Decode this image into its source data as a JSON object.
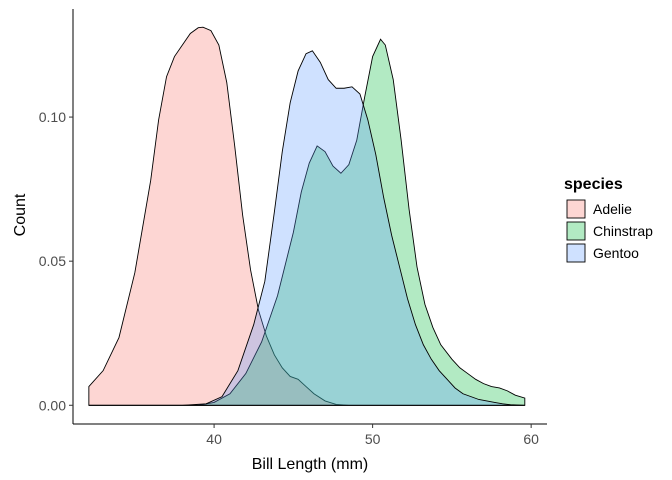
{
  "chart_data": {
    "type": "area",
    "xlabel": "Bill Length (mm)",
    "ylabel": "Count",
    "xlim": [
      31.1,
      61.0
    ],
    "ylim": [
      -0.0065,
      0.1375
    ],
    "x_ticks": [
      40,
      50,
      60
    ],
    "x_tick_labels": [
      "40",
      "50",
      "60"
    ],
    "y_ticks": [
      0.0,
      0.05,
      0.1
    ],
    "y_tick_labels": [
      "0.00",
      "0.05",
      "0.10"
    ],
    "grid": false,
    "legend": {
      "title": "species",
      "position": "right"
    },
    "series": [
      {
        "name": "Adelie",
        "color": "#F8766D",
        "points": [
          [
            32.1,
            0.0065
          ],
          [
            33.0,
            0.012
          ],
          [
            34.0,
            0.0235
          ],
          [
            35.0,
            0.046
          ],
          [
            36.0,
            0.078
          ],
          [
            36.5,
            0.099
          ],
          [
            37.0,
            0.114
          ],
          [
            37.5,
            0.121
          ],
          [
            38.0,
            0.125
          ],
          [
            38.5,
            0.129
          ],
          [
            39.0,
            0.131
          ],
          [
            39.3,
            0.1312
          ],
          [
            39.8,
            0.13
          ],
          [
            40.3,
            0.125
          ],
          [
            40.8,
            0.112
          ],
          [
            41.3,
            0.09
          ],
          [
            41.8,
            0.066
          ],
          [
            42.3,
            0.047
          ],
          [
            42.8,
            0.033
          ],
          [
            43.3,
            0.024
          ],
          [
            43.8,
            0.0175
          ],
          [
            44.3,
            0.013
          ],
          [
            44.8,
            0.01
          ],
          [
            45.3,
            0.009
          ],
          [
            45.8,
            0.0065
          ],
          [
            46.3,
            0.004
          ],
          [
            47.0,
            0.0015
          ],
          [
            47.7,
            0.0003
          ],
          [
            48.5,
            0.0
          ],
          [
            59.6,
            0.0
          ]
        ]
      },
      {
        "name": "Chinstrap",
        "color": "#00BA38",
        "points": [
          [
            32.1,
            0.0
          ],
          [
            39.0,
            0.0
          ],
          [
            40.0,
            0.001
          ],
          [
            41.0,
            0.004
          ],
          [
            42.0,
            0.011
          ],
          [
            43.0,
            0.022
          ],
          [
            44.0,
            0.038
          ],
          [
            45.0,
            0.06
          ],
          [
            45.5,
            0.074
          ],
          [
            46.0,
            0.084
          ],
          [
            46.5,
            0.09
          ],
          [
            47.0,
            0.088
          ],
          [
            47.5,
            0.083
          ],
          [
            48.0,
            0.0805
          ],
          [
            48.5,
            0.0835
          ],
          [
            49.0,
            0.092
          ],
          [
            49.5,
            0.107
          ],
          [
            50.0,
            0.121
          ],
          [
            50.5,
            0.127
          ],
          [
            50.8,
            0.125
          ],
          [
            51.3,
            0.113
          ],
          [
            51.8,
            0.092
          ],
          [
            52.3,
            0.068
          ],
          [
            52.8,
            0.048
          ],
          [
            53.3,
            0.035
          ],
          [
            53.8,
            0.027
          ],
          [
            54.3,
            0.021
          ],
          [
            55.0,
            0.016
          ],
          [
            55.5,
            0.013
          ],
          [
            56.0,
            0.011
          ],
          [
            56.5,
            0.009
          ],
          [
            57.0,
            0.0075
          ],
          [
            57.5,
            0.0065
          ],
          [
            58.0,
            0.006
          ],
          [
            58.5,
            0.005
          ],
          [
            59.0,
            0.0035
          ],
          [
            59.6,
            0.0025
          ]
        ]
      },
      {
        "name": "Gentoo",
        "color": "#619CFF",
        "points": [
          [
            32.1,
            0.0
          ],
          [
            38.0,
            0.0
          ],
          [
            39.5,
            0.0005
          ],
          [
            40.5,
            0.003
          ],
          [
            41.5,
            0.012
          ],
          [
            42.5,
            0.028
          ],
          [
            43.2,
            0.043
          ],
          [
            43.8,
            0.067
          ],
          [
            44.3,
            0.088
          ],
          [
            44.8,
            0.105
          ],
          [
            45.3,
            0.116
          ],
          [
            45.8,
            0.122
          ],
          [
            46.2,
            0.123
          ],
          [
            46.7,
            0.119
          ],
          [
            47.2,
            0.113
          ],
          [
            47.7,
            0.11
          ],
          [
            48.2,
            0.11
          ],
          [
            48.7,
            0.1105
          ],
          [
            49.2,
            0.108
          ],
          [
            49.7,
            0.099
          ],
          [
            50.2,
            0.087
          ],
          [
            50.7,
            0.072
          ],
          [
            51.2,
            0.059
          ],
          [
            51.7,
            0.048
          ],
          [
            52.2,
            0.037
          ],
          [
            52.7,
            0.028
          ],
          [
            53.2,
            0.021
          ],
          [
            53.7,
            0.016
          ],
          [
            54.2,
            0.012
          ],
          [
            54.7,
            0.009
          ],
          [
            55.2,
            0.006
          ],
          [
            55.7,
            0.004
          ],
          [
            56.2,
            0.003
          ],
          [
            56.7,
            0.002
          ],
          [
            57.2,
            0.0015
          ],
          [
            57.7,
            0.001
          ],
          [
            58.2,
            0.0005
          ],
          [
            58.7,
            0.0002
          ],
          [
            59.6,
            0.0
          ]
        ]
      }
    ]
  }
}
